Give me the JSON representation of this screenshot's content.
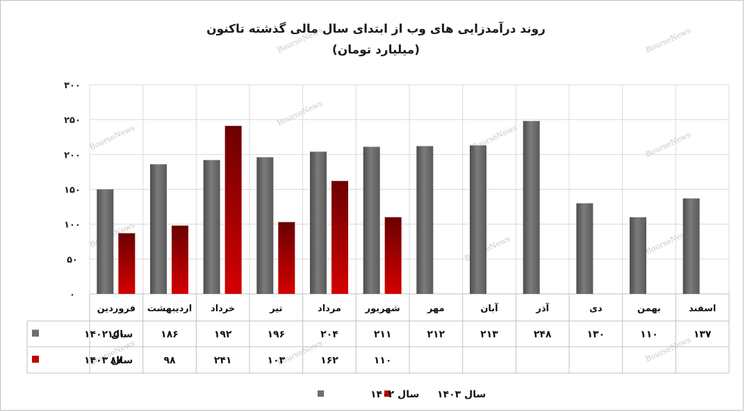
{
  "chart_data": {
    "type": "bar",
    "title": "روند درآمدزایی های وب از ابتدای سال مالی گذشته تاکنون",
    "subtitle": "(میلیارد تومان)",
    "categories": [
      "فروردین",
      "اردیبهشت",
      "خرداد",
      "تیر",
      "مرداد",
      "شهریور",
      "مهر",
      "آبان",
      "آذر",
      "دی",
      "بهمن",
      "اسفند"
    ],
    "series": [
      {
        "name": "سال ۱۴۰۲",
        "color": "#6e6e6e",
        "values": [
          150,
          186,
          192,
          196,
          204,
          211,
          212,
          213,
          248,
          130,
          110,
          137
        ],
        "labels": [
          "۱۵۰",
          "۱۸۶",
          "۱۹۲",
          "۱۹۶",
          "۲۰۴",
          "۲۱۱",
          "۲۱۲",
          "۲۱۳",
          "۲۴۸",
          "۱۳۰",
          "۱۱۰",
          "۱۳۷"
        ]
      },
      {
        "name": "سال ۱۴۰۳",
        "color": "#a50000",
        "values": [
          87,
          98,
          241,
          103,
          162,
          110,
          null,
          null,
          null,
          null,
          null,
          null
        ],
        "labels": [
          "۸۷",
          "۹۸",
          "۲۴۱",
          "۱۰۳",
          "۱۶۲",
          "۱۱۰",
          "",
          "",
          "",
          "",
          "",
          ""
        ]
      }
    ],
    "ylim": [
      0,
      300
    ],
    "yticks": [
      0,
      50,
      100,
      150,
      200,
      250,
      300
    ],
    "ytick_labels": [
      "۰",
      "۵۰",
      "۱۰۰",
      "۱۵۰",
      "۲۰۰",
      "۲۵۰",
      "۳۰۰"
    ],
    "grid": true,
    "legend": "bottom",
    "data_table": true
  },
  "watermark": "BourseNews"
}
